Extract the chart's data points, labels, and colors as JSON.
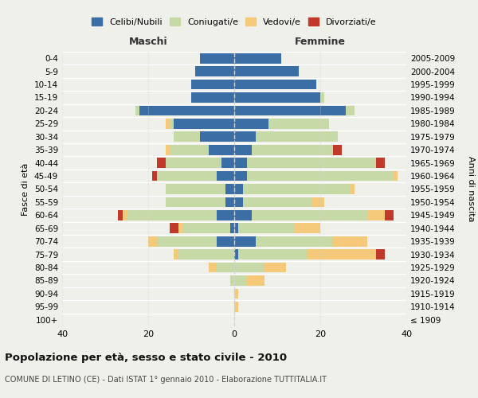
{
  "age_groups": [
    "0-4",
    "5-9",
    "10-14",
    "15-19",
    "20-24",
    "25-29",
    "30-34",
    "35-39",
    "40-44",
    "45-49",
    "50-54",
    "55-59",
    "60-64",
    "65-69",
    "70-74",
    "75-79",
    "80-84",
    "85-89",
    "90-94",
    "95-99",
    "100+"
  ],
  "birth_years": [
    "2005-2009",
    "2000-2004",
    "1995-1999",
    "1990-1994",
    "1985-1989",
    "1980-1984",
    "1975-1979",
    "1970-1974",
    "1965-1969",
    "1960-1964",
    "1955-1959",
    "1950-1954",
    "1945-1949",
    "1940-1944",
    "1935-1939",
    "1930-1934",
    "1925-1929",
    "1920-1924",
    "1915-1919",
    "1910-1914",
    "≤ 1909"
  ],
  "males": {
    "celibi": [
      8,
      9,
      10,
      10,
      22,
      14,
      8,
      6,
      3,
      4,
      2,
      2,
      4,
      1,
      4,
      0,
      0,
      0,
      0,
      0,
      0
    ],
    "coniugati": [
      0,
      0,
      0,
      0,
      1,
      1,
      6,
      9,
      13,
      14,
      14,
      14,
      21,
      11,
      14,
      13,
      4,
      1,
      0,
      0,
      0
    ],
    "vedovi": [
      0,
      0,
      0,
      0,
      0,
      1,
      0,
      1,
      0,
      0,
      0,
      0,
      1,
      1,
      2,
      1,
      2,
      0,
      0,
      0,
      0
    ],
    "divorziati": [
      0,
      0,
      0,
      0,
      0,
      0,
      0,
      0,
      2,
      1,
      0,
      0,
      1,
      2,
      0,
      0,
      0,
      0,
      0,
      0,
      0
    ]
  },
  "females": {
    "nubili": [
      11,
      15,
      19,
      20,
      26,
      8,
      5,
      4,
      3,
      3,
      2,
      2,
      4,
      1,
      5,
      1,
      0,
      0,
      0,
      0,
      0
    ],
    "coniugate": [
      0,
      0,
      0,
      1,
      2,
      14,
      19,
      19,
      30,
      34,
      25,
      16,
      27,
      13,
      18,
      16,
      7,
      3,
      0,
      0,
      0
    ],
    "vedove": [
      0,
      0,
      0,
      0,
      0,
      0,
      0,
      0,
      0,
      1,
      1,
      3,
      4,
      6,
      8,
      16,
      5,
      4,
      1,
      1,
      0
    ],
    "divorziate": [
      0,
      0,
      0,
      0,
      0,
      0,
      0,
      2,
      2,
      0,
      0,
      0,
      2,
      0,
      0,
      2,
      0,
      0,
      0,
      0,
      0
    ]
  },
  "colors": {
    "celibi": "#3a6ea5",
    "coniugati": "#c8d9a8",
    "vedovi": "#f5c97a",
    "divorziati": "#c0392b"
  },
  "xlim": 40,
  "title": "Popolazione per età, sesso e stato civile - 2010",
  "subtitle": "COMUNE DI LETINO (CE) - Dati ISTAT 1° gennaio 2010 - Elaborazione TUTTITALIA.IT",
  "ylabel_left": "Fasce di età",
  "ylabel_right": "Anni di nascita",
  "xlabel_left": "Maschi",
  "xlabel_right": "Femmine",
  "background_color": "#f0f0eb"
}
